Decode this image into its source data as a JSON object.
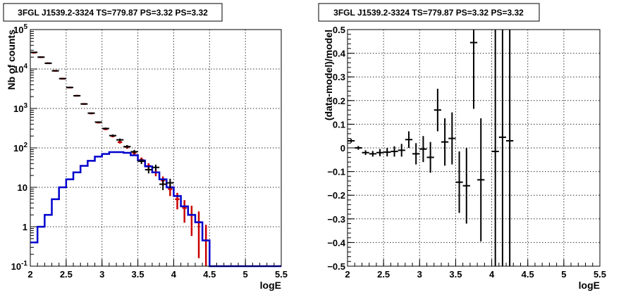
{
  "chart_data": [
    {
      "type": "line",
      "title": "3FGL J1539.2-3324 TS=779.87 PS=3.32 PS=3.32",
      "xlabel": "logE",
      "ylabel": "Nb of counts",
      "xlim": [
        2,
        5.5
      ],
      "ylim": [
        0.1,
        100000
      ],
      "yscale": "log",
      "grid": true,
      "x_ticks": [
        "2",
        "2.5",
        "3",
        "3.5",
        "4",
        "4.5",
        "5",
        "5.5"
      ],
      "y_ticks": [
        {
          "value": 0.1,
          "base": "10",
          "exp": "-1"
        },
        {
          "value": 1,
          "label": "1"
        },
        {
          "value": 10,
          "label": "10"
        },
        {
          "value": 100,
          "base": "10",
          "exp": "2"
        },
        {
          "value": 1000,
          "base": "10",
          "exp": "3"
        },
        {
          "value": 10000,
          "base": "10",
          "exp": "4"
        },
        {
          "value": 100000,
          "base": "10",
          "exp": "5"
        }
      ],
      "bin_width": 0.1,
      "series": [
        {
          "role": "model_total",
          "color": "#cc0000",
          "x": [
            2.05,
            2.15,
            2.25,
            2.35,
            2.45,
            2.55,
            2.65,
            2.75,
            2.85,
            2.95,
            3.05,
            3.15,
            3.25,
            3.35,
            3.45,
            3.55,
            3.65,
            3.75,
            3.85,
            3.95,
            4.05,
            4.15,
            4.25,
            4.35,
            4.45
          ],
          "values": [
            26000,
            20000,
            14000,
            9000,
            5700,
            3400,
            2100,
            1300,
            750,
            440,
            300,
            200,
            140,
            105,
            75,
            50,
            35,
            24,
            15,
            9,
            5,
            3,
            2,
            1.3,
            0.45
          ]
        },
        {
          "role": "model_source",
          "color": "#0000cc",
          "x": [
            2.05,
            2.15,
            2.25,
            2.35,
            2.45,
            2.55,
            2.65,
            2.75,
            2.85,
            2.95,
            3.05,
            3.15,
            3.25,
            3.35,
            3.45,
            3.55,
            3.65,
            3.75,
            3.85,
            3.95,
            4.05,
            4.15,
            4.25,
            4.35,
            4.45,
            4.55,
            4.65,
            4.75,
            4.85,
            4.95,
            5.05,
            5.15,
            5.25,
            5.35,
            5.45
          ],
          "values": [
            0.4,
            1,
            2,
            5,
            10,
            16,
            24,
            35,
            47,
            60,
            70,
            78,
            78,
            75,
            65,
            48,
            34,
            24,
            16,
            10,
            6,
            3.3,
            2,
            1.3,
            0.45,
            0.1,
            0.1,
            0.1,
            0.1,
            0.1,
            0.1,
            0.1,
            0.1,
            0.1,
            0.1
          ]
        },
        {
          "role": "data",
          "color": "#000000",
          "x": [
            2.05,
            2.15,
            2.25,
            2.35,
            2.45,
            2.55,
            2.65,
            2.75,
            2.85,
            2.95,
            3.05,
            3.15,
            3.25,
            3.35,
            3.45,
            3.55,
            3.65,
            3.75,
            3.85,
            3.95
          ],
          "values": [
            26500,
            20000,
            14000,
            9000,
            5700,
            3400,
            2100,
            1300,
            760,
            450,
            310,
            205,
            160,
            108,
            80,
            46,
            28,
            32,
            12,
            13
          ],
          "err": [
            160,
            140,
            118,
            95,
            75,
            58,
            46,
            36,
            27,
            21,
            18,
            14,
            13,
            10,
            9,
            7,
            5.5,
            5.5,
            3.5,
            3.5
          ]
        }
      ]
    },
    {
      "type": "scatter",
      "title": "3FGL J1539.2-3324 TS=779.87 PS=3.32 PS=3.32",
      "xlabel": "logE",
      "ylabel": "(data-model)/model",
      "xlim": [
        2,
        5.5
      ],
      "ylim": [
        -0.5,
        0.5
      ],
      "grid": true,
      "x_ticks": [
        "2",
        "2.5",
        "3",
        "3.5",
        "4",
        "4.5",
        "5",
        "5.5"
      ],
      "y_ticks": [
        "−0.5",
        "−0.4",
        "−0.3",
        "−0.2",
        "−0.1",
        "0",
        "0.1",
        "0.2",
        "0.3",
        "0.4",
        "0.5"
      ],
      "bin_width": 0.1,
      "series": [
        {
          "role": "residuals",
          "color": "#000000",
          "x": [
            2.05,
            2.15,
            2.25,
            2.35,
            2.45,
            2.55,
            2.65,
            2.75,
            2.85,
            2.95,
            3.05,
            3.15,
            3.25,
            3.35,
            3.45,
            3.55,
            3.65,
            3.75,
            3.85,
            4.05,
            4.15,
            4.25
          ],
          "values": [
            0.03,
            0.0,
            -0.02,
            -0.025,
            -0.02,
            -0.018,
            -0.015,
            -0.01,
            0.035,
            -0.025,
            -0.005,
            -0.04,
            0.16,
            0.025,
            0.04,
            -0.145,
            -0.16,
            0.445,
            -0.135,
            -0.015,
            0.045,
            0.03
          ],
          "err": [
            0.008,
            0.008,
            0.01,
            0.012,
            0.015,
            0.018,
            0.022,
            0.027,
            0.035,
            0.045,
            0.055,
            0.065,
            0.09,
            0.1,
            0.11,
            0.13,
            0.16,
            0.28,
            0.26,
            0.7,
            0.8,
            0.9
          ]
        }
      ]
    }
  ]
}
